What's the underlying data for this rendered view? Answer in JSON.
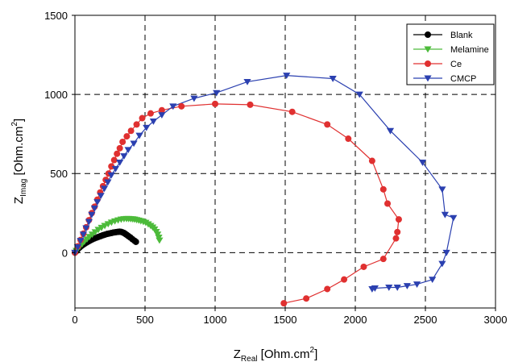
{
  "chart_data": {
    "type": "scatter",
    "xlabel": {
      "main": "Z",
      "sub": "Real",
      "unit": " [Ohm.cm",
      "sup": "2",
      "close": "]"
    },
    "ylabel": {
      "main": "Z",
      "sub": "Imag",
      "unit": " [Ohm.cm",
      "sup": "2",
      "close": "]"
    },
    "xlim": [
      0,
      3000
    ],
    "ylim": [
      -350,
      1500
    ],
    "xticks": [
      0,
      500,
      1000,
      1500,
      2000,
      2500,
      3000
    ],
    "yticks": [
      0,
      500,
      1000,
      1500
    ],
    "grid": "dashed, at 500 intervals",
    "legend_position": "top-right",
    "series": [
      {
        "name": "Blank",
        "marker": "circle",
        "color": "#000000",
        "points": [
          [
            0,
            0
          ],
          [
            8,
            8
          ],
          [
            16,
            17
          ],
          [
            25,
            26
          ],
          [
            35,
            34
          ],
          [
            46,
            42
          ],
          [
            58,
            50
          ],
          [
            70,
            57
          ],
          [
            83,
            64
          ],
          [
            97,
            71
          ],
          [
            111,
            78
          ],
          [
            125,
            84
          ],
          [
            140,
            90
          ],
          [
            155,
            95
          ],
          [
            170,
            100
          ],
          [
            185,
            105
          ],
          [
            200,
            110
          ],
          [
            215,
            114
          ],
          [
            230,
            118
          ],
          [
            245,
            121
          ],
          [
            260,
            124
          ],
          [
            275,
            127
          ],
          [
            290,
            129
          ],
          [
            305,
            131
          ],
          [
            318,
            132
          ],
          [
            330,
            131
          ],
          [
            340,
            128
          ],
          [
            350,
            124
          ],
          [
            360,
            118
          ],
          [
            370,
            112
          ],
          [
            382,
            104
          ],
          [
            395,
            96
          ],
          [
            410,
            85
          ],
          [
            425,
            75
          ],
          [
            435,
            68
          ]
        ]
      },
      {
        "name": "Melamine",
        "marker": "triangle-down",
        "color": "#4cbb3a",
        "points": [
          [
            0,
            0
          ],
          [
            10,
            12
          ],
          [
            22,
            26
          ],
          [
            36,
            40
          ],
          [
            52,
            55
          ],
          [
            68,
            70
          ],
          [
            86,
            85
          ],
          [
            104,
            100
          ],
          [
            124,
            115
          ],
          [
            145,
            130
          ],
          [
            167,
            145
          ],
          [
            190,
            158
          ],
          [
            213,
            170
          ],
          [
            237,
            181
          ],
          [
            261,
            191
          ],
          [
            285,
            199
          ],
          [
            308,
            205
          ],
          [
            330,
            210
          ],
          [
            350,
            213
          ],
          [
            368,
            214
          ],
          [
            383,
            214
          ],
          [
            398,
            213
          ],
          [
            412,
            212
          ],
          [
            425,
            210
          ],
          [
            440,
            207
          ],
          [
            455,
            204
          ],
          [
            470,
            200
          ],
          [
            488,
            195
          ],
          [
            505,
            190
          ],
          [
            523,
            180
          ],
          [
            540,
            170
          ],
          [
            555,
            160
          ],
          [
            568,
            148
          ],
          [
            580,
            132
          ],
          [
            590,
            115
          ],
          [
            598,
            96
          ],
          [
            603,
            78
          ]
        ]
      },
      {
        "name": "Ce",
        "marker": "circle",
        "color": "#e03030",
        "points": [
          [
            0,
            0
          ],
          [
            20,
            40
          ],
          [
            40,
            80
          ],
          [
            60,
            120
          ],
          [
            80,
            160
          ],
          [
            100,
            205
          ],
          [
            120,
            250
          ],
          [
            140,
            290
          ],
          [
            160,
            335
          ],
          [
            180,
            380
          ],
          [
            200,
            420
          ],
          [
            220,
            460
          ],
          [
            240,
            500
          ],
          [
            260,
            545
          ],
          [
            280,
            585
          ],
          [
            300,
            625
          ],
          [
            320,
            660
          ],
          [
            340,
            700
          ],
          [
            370,
            735
          ],
          [
            400,
            770
          ],
          [
            440,
            810
          ],
          [
            480,
            850
          ],
          [
            540,
            880
          ],
          [
            620,
            900
          ],
          [
            760,
            925
          ],
          [
            1000,
            940
          ],
          [
            1250,
            935
          ],
          [
            1550,
            890
          ],
          [
            1800,
            810
          ],
          [
            1950,
            720
          ],
          [
            2120,
            580
          ],
          [
            2200,
            400
          ],
          [
            2230,
            310
          ],
          [
            2310,
            210
          ],
          [
            2300,
            130
          ],
          [
            2290,
            90
          ],
          [
            2200,
            -40
          ],
          [
            2060,
            -90
          ],
          [
            1920,
            -170
          ],
          [
            1800,
            -230
          ],
          [
            1650,
            -290
          ],
          [
            1490,
            -320
          ]
        ]
      },
      {
        "name": "CMCP",
        "marker": "triangle-down",
        "color": "#2b40b0",
        "points": [
          [
            0,
            0
          ],
          [
            20,
            35
          ],
          [
            40,
            75
          ],
          [
            60,
            115
          ],
          [
            80,
            155
          ],
          [
            100,
            195
          ],
          [
            120,
            240
          ],
          [
            140,
            280
          ],
          [
            160,
            320
          ],
          [
            185,
            360
          ],
          [
            210,
            405
          ],
          [
            235,
            445
          ],
          [
            260,
            490
          ],
          [
            290,
            530
          ],
          [
            320,
            570
          ],
          [
            350,
            610
          ],
          [
            380,
            650
          ],
          [
            420,
            690
          ],
          [
            460,
            740
          ],
          [
            510,
            790
          ],
          [
            560,
            830
          ],
          [
            620,
            870
          ],
          [
            700,
            925
          ],
          [
            850,
            975
          ],
          [
            1010,
            1010
          ],
          [
            1230,
            1080
          ],
          [
            1510,
            1120
          ],
          [
            1840,
            1100
          ],
          [
            2030,
            1000
          ],
          [
            2250,
            770
          ],
          [
            2480,
            570
          ],
          [
            2620,
            400
          ],
          [
            2640,
            240
          ],
          [
            2700,
            220
          ],
          [
            2650,
            0
          ],
          [
            2620,
            -70
          ],
          [
            2550,
            -170
          ],
          [
            2440,
            -200
          ],
          [
            2370,
            -210
          ],
          [
            2300,
            -220
          ],
          [
            2240,
            -220
          ],
          [
            2140,
            -225
          ],
          [
            2120,
            -230
          ]
        ]
      }
    ]
  }
}
